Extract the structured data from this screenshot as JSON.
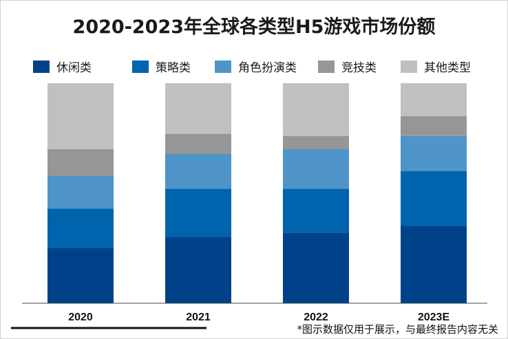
{
  "page": {
    "title": "2020-2023年全球各类型H5游戏市场份额",
    "footnote": "*图示数据仅用于展示，与最终报告内容无关"
  },
  "chart_data": {
    "type": "bar",
    "stacked": true,
    "title": "2020-2023年全球各类型H5游戏市场份额",
    "xlabel": "",
    "ylabel": "",
    "ylim": [
      0,
      100
    ],
    "grid": false,
    "legend_position": "top",
    "categories": [
      "2020",
      "2021",
      "2022",
      "2023E"
    ],
    "series": [
      {
        "name": "休闲类",
        "color": "#00428a",
        "values": [
          25,
          30,
          32,
          35
        ]
      },
      {
        "name": "策略类",
        "color": "#0063ae",
        "values": [
          18,
          22,
          20,
          25
        ]
      },
      {
        "name": "角色扮演类",
        "color": "#4e94c8",
        "values": [
          15,
          16,
          18,
          16
        ]
      },
      {
        "name": "竞技类",
        "color": "#969696",
        "values": [
          12,
          9,
          6,
          9
        ]
      },
      {
        "name": "其他类型",
        "color": "#c0c0c0",
        "values": [
          30,
          23,
          24,
          15
        ]
      }
    ]
  }
}
